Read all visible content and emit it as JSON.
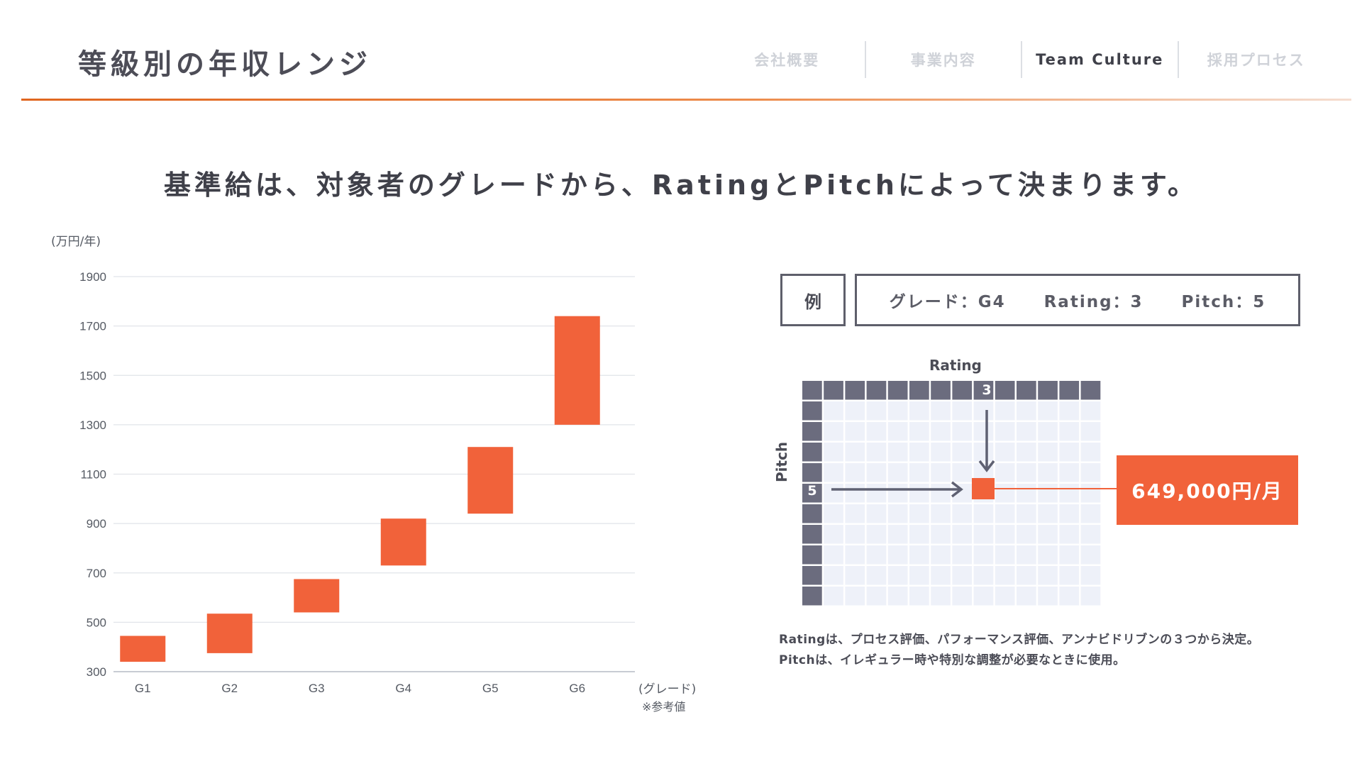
{
  "header": {
    "title": "等級別の年収レンジ",
    "nav": [
      "会社概要",
      "事業内容",
      "Team Culture",
      "採用プロセス"
    ],
    "active_nav": "Team Culture"
  },
  "headline": "基準給は、対象者のグレードから、RatingとPitchによって決まります。",
  "chart_data": {
    "type": "bar",
    "subtype": "floating-range",
    "y_unit_label": "(万円/年)",
    "x_unit_label": "(グレード)",
    "note": "※参考値",
    "categories": [
      "G1",
      "G2",
      "G3",
      "G4",
      "G5",
      "G6"
    ],
    "ranges": [
      [
        340,
        445
      ],
      [
        375,
        535
      ],
      [
        540,
        675
      ],
      [
        730,
        920
      ],
      [
        940,
        1210
      ],
      [
        1300,
        1740
      ]
    ],
    "yticks": [
      300,
      500,
      700,
      900,
      1100,
      1300,
      1500,
      1700,
      1900
    ],
    "ylim": [
      300,
      1900
    ],
    "grid": true,
    "color": "#f1623a"
  },
  "example": {
    "label": "例",
    "grade": "グレード：G4",
    "rating": "Rating：3",
    "pitch": "Pitch：5"
  },
  "matrix": {
    "x_label": "Rating",
    "y_label": "Pitch",
    "highlight_col_label": "3",
    "highlight_row_label": "5",
    "result": "649,000円/月",
    "header_color": "#6b6c7e",
    "cell_color": "#eef1f9",
    "accent_color": "#f1623a"
  },
  "notes": [
    "Ratingは、プロセス評価、パフォーマンス評価、アンナビドリブンの３つから決定。",
    "Pitchは、イレギュラー時や特別な調整が必要なときに使用。"
  ]
}
